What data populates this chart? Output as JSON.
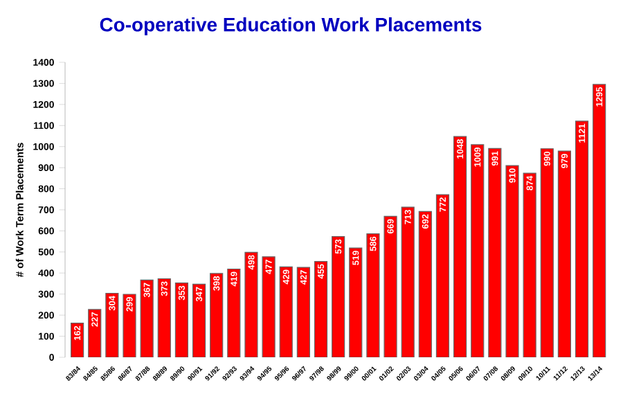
{
  "chart_data": {
    "type": "bar",
    "title": "Co-operative Education Work Placements",
    "ylabel": "# of Work Term Placements",
    "categories": [
      "83/84",
      "84/85",
      "85/86",
      "86/87",
      "87/88",
      "88/89",
      "89/90",
      "90/91",
      "91/92",
      "92/93",
      "93/94",
      "94/95",
      "95/96",
      "96/97",
      "97/98",
      "98/99",
      "99/00",
      "00/01",
      "01/02",
      "02/03",
      "03/04",
      "04/05",
      "05/06",
      "06/07",
      "07/08",
      "08/09",
      "09/10",
      "10/11",
      "11/12",
      "12/13",
      "13/14"
    ],
    "values": [
      162,
      227,
      304,
      299,
      367,
      373,
      353,
      347,
      398,
      419,
      498,
      477,
      429,
      427,
      455,
      573,
      519,
      586,
      669,
      713,
      692,
      772,
      1048,
      1009,
      991,
      910,
      874,
      990,
      979,
      1121,
      1295
    ],
    "color": "#ff0000",
    "ylim": [
      0,
      1400
    ],
    "yticks": [
      0,
      100,
      200,
      300,
      400,
      500,
      600,
      700,
      800,
      900,
      1000,
      1100,
      1200,
      1300,
      1400
    ],
    "data_labels": true
  }
}
